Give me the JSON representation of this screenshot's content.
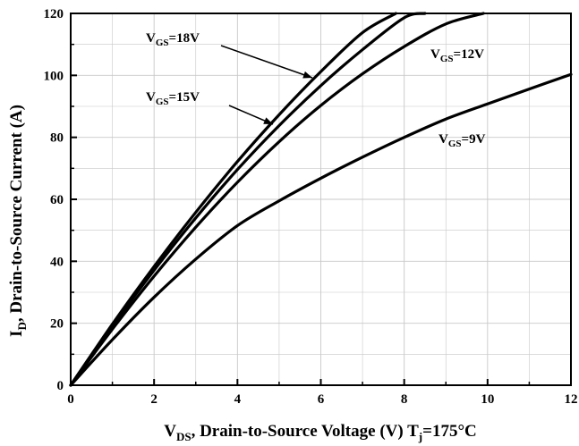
{
  "chart_data": {
    "type": "line",
    "xlabel": {
      "main": "V",
      "sub": "DS",
      "rest": ", Drain-to-Source Voltage (V) T",
      "sub2": "j",
      "tail": "=175°C"
    },
    "ylabel": {
      "main": "I",
      "sub": "D",
      "rest": ", Drain-to-Source Current (A)"
    },
    "xlim": [
      0,
      12
    ],
    "ylim": [
      0,
      120
    ],
    "xticks": [
      "0",
      "2",
      "4",
      "6",
      "8",
      "10",
      "12"
    ],
    "yticks": [
      "0",
      "20",
      "40",
      "60",
      "80",
      "100",
      "120"
    ],
    "grid": true,
    "series": [
      {
        "name": "VGS=18V",
        "label": {
          "main": "V",
          "sub": "GS",
          "tail": "=18V"
        },
        "x": [
          0,
          1,
          2,
          3,
          4,
          5,
          6,
          7,
          7.8
        ],
        "y": [
          0,
          19.7,
          38.3,
          55.8,
          72.2,
          87.3,
          101.2,
          113.8,
          120
        ]
      },
      {
        "name": "VGS=15V",
        "label": {
          "main": "V",
          "sub": "GS",
          "tail": "=15V"
        },
        "x": [
          0,
          1,
          2,
          3,
          4,
          5,
          6,
          7,
          8,
          8.5
        ],
        "y": [
          0,
          19.1,
          37.1,
          54,
          69.6,
          83.8,
          96.7,
          108.3,
          118.6,
          120
        ]
      },
      {
        "name": "VGS=12V",
        "label": {
          "main": "V",
          "sub": "GS",
          "tail": "=12V"
        },
        "x": [
          0,
          1,
          2,
          3,
          4,
          5,
          6,
          7,
          8,
          9,
          9.9
        ],
        "y": [
          0,
          18.1,
          35.2,
          51,
          65.5,
          78.6,
          90.3,
          100.5,
          109.3,
          116.6,
          120
        ]
      },
      {
        "name": "VGS=9V",
        "label": {
          "main": "V",
          "sub": "GS",
          "tail": "=9V"
        },
        "x": [
          0,
          1,
          2,
          3,
          4,
          5,
          6,
          7,
          8,
          9,
          10,
          11,
          12
        ],
        "y": [
          0,
          14.7,
          28.4,
          40.7,
          51.5,
          59.5,
          66.8,
          73.6,
          80,
          85.9,
          90.8,
          95.6,
          100.3
        ]
      }
    ]
  }
}
